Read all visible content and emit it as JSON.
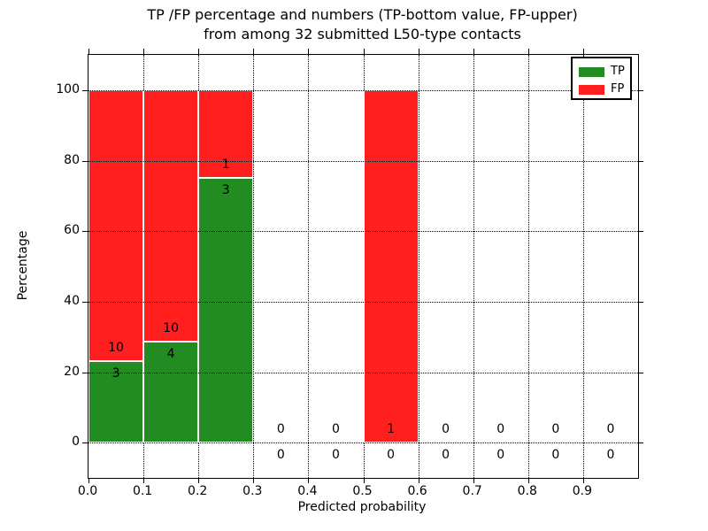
{
  "chart_data": {
    "type": "bar",
    "stacked": true,
    "title_line1": "TP /FP percentage and numbers (TP-bottom value, FP-upper)",
    "title_line2": "from among 32 submitted L50-type contacts",
    "xlabel": "Predicted probability",
    "ylabel": "Percentage",
    "total_contacts": 32,
    "xlim": [
      0,
      1
    ],
    "ylim": [
      -10,
      110
    ],
    "xtick_values": [
      0.0,
      0.1,
      0.2,
      0.3,
      0.4,
      0.5,
      0.6,
      0.7,
      0.8,
      0.9
    ],
    "xtick_labels": [
      "0.0",
      "0.1",
      "0.2",
      "0.3",
      "0.4",
      "0.5",
      "0.6",
      "0.7",
      "0.8",
      "0.9"
    ],
    "ytick_values": [
      0,
      20,
      40,
      60,
      80,
      100
    ],
    "ytick_labels": [
      "0",
      "20",
      "40",
      "60",
      "80",
      "100"
    ],
    "grid": {
      "style": "dotted",
      "color": "#000000",
      "horizontal_on_top": true
    },
    "colors": {
      "tp": "#228b22",
      "fp": "#ff1f1f",
      "bar_edge": "#ffffff"
    },
    "legend": {
      "position": "upper right",
      "entries": [
        {
          "label": "TP",
          "color": "#228b22"
        },
        {
          "label": "FP",
          "color": "#ff1f1f"
        }
      ]
    },
    "bins": [
      {
        "x0": 0.0,
        "x1": 0.1,
        "tp": 3,
        "fp": 10
      },
      {
        "x0": 0.1,
        "x1": 0.2,
        "tp": 4,
        "fp": 10
      },
      {
        "x0": 0.2,
        "x1": 0.3,
        "tp": 3,
        "fp": 1
      },
      {
        "x0": 0.3,
        "x1": 0.4,
        "tp": 0,
        "fp": 0
      },
      {
        "x0": 0.4,
        "x1": 0.5,
        "tp": 0,
        "fp": 0
      },
      {
        "x0": 0.5,
        "x1": 0.6,
        "tp": 0,
        "fp": 1
      },
      {
        "x0": 0.6,
        "x1": 0.7,
        "tp": 0,
        "fp": 0
      },
      {
        "x0": 0.7,
        "x1": 0.8,
        "tp": 0,
        "fp": 0
      },
      {
        "x0": 0.8,
        "x1": 0.9,
        "tp": 0,
        "fp": 0
      },
      {
        "x0": 0.9,
        "x1": 1.0,
        "tp": 0,
        "fp": 0
      }
    ]
  }
}
